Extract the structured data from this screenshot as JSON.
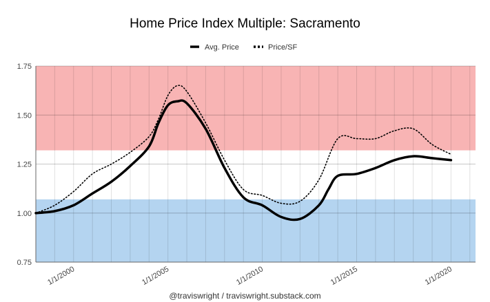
{
  "chart_data": {
    "type": "line",
    "title": "Home Price Index Multiple: Sacramento",
    "legend_position": "top-center",
    "grid": true,
    "ylim": [
      0.75,
      1.75
    ],
    "y_ticks": [
      "0.75",
      "1.00",
      "1.25",
      "1.50",
      "1.75"
    ],
    "x_range": [
      1998.0,
      2021.3
    ],
    "x_tick_labels": [
      {
        "label": "1/1/2000",
        "x": 2000
      },
      {
        "label": "1/1/2005",
        "x": 2005
      },
      {
        "label": "1/1/2010",
        "x": 2010
      },
      {
        "label": "1/1/2015",
        "x": 2015
      },
      {
        "label": "1/1/2020",
        "x": 2020
      }
    ],
    "bands": [
      {
        "name": "high",
        "from": 1.32,
        "to": 1.75,
        "color": "#f8b4b4"
      },
      {
        "name": "low",
        "from": 0.75,
        "to": 1.07,
        "color": "#b4d4f0"
      }
    ],
    "series": [
      {
        "name": "Avg. Price",
        "style": "solid",
        "color": "#000000",
        "points": [
          [
            1998.0,
            1.0
          ],
          [
            1999.0,
            1.01
          ],
          [
            2000.0,
            1.04
          ],
          [
            2001.0,
            1.1
          ],
          [
            2002.0,
            1.16
          ],
          [
            2003.0,
            1.24
          ],
          [
            2004.0,
            1.34
          ],
          [
            2004.5,
            1.46
          ],
          [
            2005.0,
            1.55
          ],
          [
            2005.5,
            1.57
          ],
          [
            2006.0,
            1.56
          ],
          [
            2007.0,
            1.43
          ],
          [
            2008.0,
            1.23
          ],
          [
            2009.0,
            1.08
          ],
          [
            2010.0,
            1.04
          ],
          [
            2011.0,
            0.98
          ],
          [
            2012.0,
            0.97
          ],
          [
            2013.0,
            1.04
          ],
          [
            2013.5,
            1.12
          ],
          [
            2014.0,
            1.19
          ],
          [
            2015.0,
            1.2
          ],
          [
            2016.0,
            1.23
          ],
          [
            2017.0,
            1.27
          ],
          [
            2018.0,
            1.29
          ],
          [
            2019.0,
            1.28
          ],
          [
            2020.0,
            1.27
          ]
        ]
      },
      {
        "name": "Price/SF",
        "style": "dotted",
        "color": "#000000",
        "points": [
          [
            1998.0,
            1.0
          ],
          [
            1999.0,
            1.04
          ],
          [
            2000.0,
            1.11
          ],
          [
            2001.0,
            1.2
          ],
          [
            2002.0,
            1.25
          ],
          [
            2003.0,
            1.31
          ],
          [
            2004.0,
            1.39
          ],
          [
            2004.5,
            1.48
          ],
          [
            2005.0,
            1.6
          ],
          [
            2005.5,
            1.65
          ],
          [
            2006.0,
            1.62
          ],
          [
            2007.0,
            1.46
          ],
          [
            2008.0,
            1.27
          ],
          [
            2009.0,
            1.12
          ],
          [
            2010.0,
            1.09
          ],
          [
            2011.0,
            1.05
          ],
          [
            2012.0,
            1.06
          ],
          [
            2013.0,
            1.17
          ],
          [
            2014.0,
            1.38
          ],
          [
            2015.0,
            1.38
          ],
          [
            2016.0,
            1.38
          ],
          [
            2017.0,
            1.42
          ],
          [
            2018.0,
            1.43
          ],
          [
            2019.0,
            1.35
          ],
          [
            2020.0,
            1.3
          ]
        ]
      }
    ]
  },
  "footer": {
    "credit": "@traviswright / traviswright.substack.com"
  }
}
